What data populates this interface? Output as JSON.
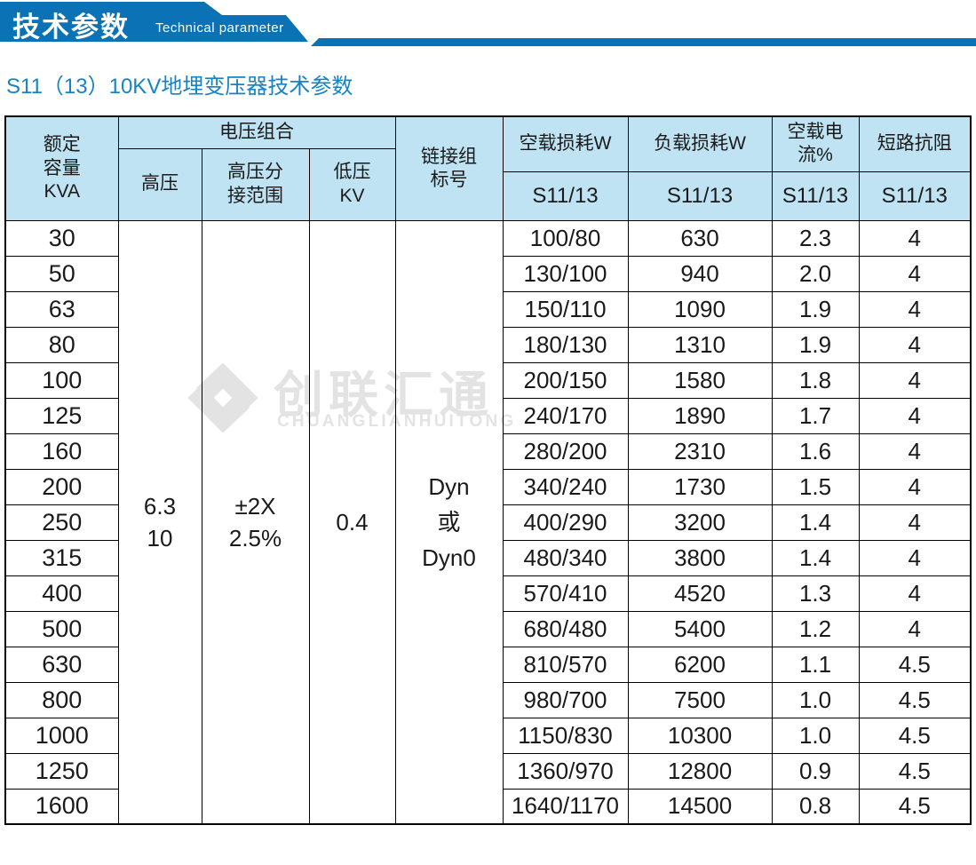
{
  "banner": {
    "title_cn": "技术参数",
    "title_en": "Technical parameter"
  },
  "page_title": "S11（13）10KV地埋变压器技术参数",
  "watermark": {
    "logo_icon": "interlocked-chevron-diamond-logo",
    "name_cn": "创联汇通",
    "name_en": "CHUANGLIANHUITONG"
  },
  "colors": {
    "banner_blue": "#0b72b5",
    "title_blue": "#1583c5",
    "header_bg": "#bfe3f3",
    "border_black": "#000000",
    "watermark_gray": "#e3e3e3"
  },
  "table": {
    "headers": {
      "rated_capacity": "额定\n容量\nKVA",
      "voltage_group": "电压组合",
      "hv": "高压",
      "hv_tap_range": "高压分\n接范围",
      "lv": "低压\nKV",
      "vector_group": "链接组\n标号",
      "no_load_loss": "空载损耗W",
      "load_loss": "负载损耗W",
      "no_load_current": "空载电流%",
      "impedance": "短路抗阻",
      "model": "S11/13"
    },
    "merged": {
      "hv": "6.3\n10",
      "hv_tap_range": "±2X\n2.5%",
      "lv": "0.4",
      "vector_group": "Dyn\n或\nDyn0"
    },
    "rows": [
      {
        "kva": "30",
        "no_load_loss": "100/80",
        "load_loss": "630",
        "no_load_current": "2.3",
        "impedance": "4"
      },
      {
        "kva": "50",
        "no_load_loss": "130/100",
        "load_loss": "940",
        "no_load_current": "2.0",
        "impedance": "4"
      },
      {
        "kva": "63",
        "no_load_loss": "150/110",
        "load_loss": "1090",
        "no_load_current": "1.9",
        "impedance": "4"
      },
      {
        "kva": "80",
        "no_load_loss": "180/130",
        "load_loss": "1310",
        "no_load_current": "1.9",
        "impedance": "4"
      },
      {
        "kva": "100",
        "no_load_loss": "200/150",
        "load_loss": "1580",
        "no_load_current": "1.8",
        "impedance": "4"
      },
      {
        "kva": "125",
        "no_load_loss": "240/170",
        "load_loss": "1890",
        "no_load_current": "1.7",
        "impedance": "4"
      },
      {
        "kva": "160",
        "no_load_loss": "280/200",
        "load_loss": "2310",
        "no_load_current": "1.6",
        "impedance": "4"
      },
      {
        "kva": "200",
        "no_load_loss": "340/240",
        "load_loss": "1730",
        "no_load_current": "1.5",
        "impedance": "4"
      },
      {
        "kva": "250",
        "no_load_loss": "400/290",
        "load_loss": "3200",
        "no_load_current": "1.4",
        "impedance": "4"
      },
      {
        "kva": "315",
        "no_load_loss": "480/340",
        "load_loss": "3800",
        "no_load_current": "1.4",
        "impedance": "4"
      },
      {
        "kva": "400",
        "no_load_loss": "570/410",
        "load_loss": "4520",
        "no_load_current": "1.3",
        "impedance": "4"
      },
      {
        "kva": "500",
        "no_load_loss": "680/480",
        "load_loss": "5400",
        "no_load_current": "1.2",
        "impedance": "4"
      },
      {
        "kva": "630",
        "no_load_loss": "810/570",
        "load_loss": "6200",
        "no_load_current": "1.1",
        "impedance": "4.5"
      },
      {
        "kva": "800",
        "no_load_loss": "980/700",
        "load_loss": "7500",
        "no_load_current": "1.0",
        "impedance": "4.5"
      },
      {
        "kva": "1000",
        "no_load_loss": "1150/830",
        "load_loss": "10300",
        "no_load_current": "1.0",
        "impedance": "4.5"
      },
      {
        "kva": "1250",
        "no_load_loss": "1360/970",
        "load_loss": "12800",
        "no_load_current": "0.9",
        "impedance": "4.5"
      },
      {
        "kva": "1600",
        "no_load_loss": "1640/1170",
        "load_loss": "14500",
        "no_load_current": "0.8",
        "impedance": "4.5"
      }
    ]
  }
}
